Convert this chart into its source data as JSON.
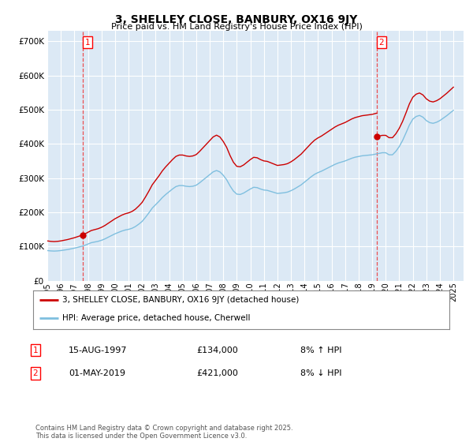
{
  "title": "3, SHELLEY CLOSE, BANBURY, OX16 9JY",
  "subtitle": "Price paid vs. HM Land Registry's House Price Index (HPI)",
  "ylim": [
    0,
    730000
  ],
  "yticks": [
    0,
    100000,
    200000,
    300000,
    400000,
    500000,
    600000,
    700000
  ],
  "ytick_labels": [
    "£0",
    "£100K",
    "£200K",
    "£300K",
    "£400K",
    "£500K",
    "£600K",
    "£700K"
  ],
  "xlim_start": 1995.0,
  "xlim_end": 2025.75,
  "plot_bg_color": "#dce9f5",
  "grid_color": "#ffffff",
  "sale_color": "#cc0000",
  "hpi_color": "#7fbfdf",
  "vline_color": "#ee3333",
  "legend_sale_label": "3, SHELLEY CLOSE, BANBURY, OX16 9JY (detached house)",
  "legend_hpi_label": "HPI: Average price, detached house, Cherwell",
  "annotation1_date": "15-AUG-1997",
  "annotation1_price": "£134,000",
  "annotation1_hpi": "8% ↑ HPI",
  "annotation2_date": "01-MAY-2019",
  "annotation2_price": "£421,000",
  "annotation2_hpi": "8% ↓ HPI",
  "footer": "Contains HM Land Registry data © Crown copyright and database right 2025.\nThis data is licensed under the Open Government Licence v3.0.",
  "hpi_years": [
    1995.0,
    1995.25,
    1995.5,
    1995.75,
    1996.0,
    1996.25,
    1996.5,
    1996.75,
    1997.0,
    1997.25,
    1997.5,
    1997.75,
    1998.0,
    1998.25,
    1998.5,
    1998.75,
    1999.0,
    1999.25,
    1999.5,
    1999.75,
    2000.0,
    2000.25,
    2000.5,
    2000.75,
    2001.0,
    2001.25,
    2001.5,
    2001.75,
    2002.0,
    2002.25,
    2002.5,
    2002.75,
    2003.0,
    2003.25,
    2003.5,
    2003.75,
    2004.0,
    2004.25,
    2004.5,
    2004.75,
    2005.0,
    2005.25,
    2005.5,
    2005.75,
    2006.0,
    2006.25,
    2006.5,
    2006.75,
    2007.0,
    2007.25,
    2007.5,
    2007.75,
    2008.0,
    2008.25,
    2008.5,
    2008.75,
    2009.0,
    2009.25,
    2009.5,
    2009.75,
    2010.0,
    2010.25,
    2010.5,
    2010.75,
    2011.0,
    2011.25,
    2011.5,
    2011.75,
    2012.0,
    2012.25,
    2012.5,
    2012.75,
    2013.0,
    2013.25,
    2013.5,
    2013.75,
    2014.0,
    2014.25,
    2014.5,
    2014.75,
    2015.0,
    2015.25,
    2015.5,
    2015.75,
    2016.0,
    2016.25,
    2016.5,
    2016.75,
    2017.0,
    2017.25,
    2017.5,
    2017.75,
    2018.0,
    2018.25,
    2018.5,
    2018.75,
    2019.0,
    2019.25,
    2019.5,
    2019.75,
    2020.0,
    2020.25,
    2020.5,
    2020.75,
    2021.0,
    2021.25,
    2021.5,
    2021.75,
    2022.0,
    2022.25,
    2022.5,
    2022.75,
    2023.0,
    2023.25,
    2023.5,
    2023.75,
    2024.0,
    2024.25,
    2024.5,
    2024.75,
    2025.0
  ],
  "hpi_values": [
    88000,
    87000,
    86500,
    87000,
    88000,
    89500,
    91000,
    93000,
    95000,
    97500,
    100000,
    103000,
    107000,
    111000,
    113000,
    115000,
    118000,
    122000,
    127000,
    132000,
    137000,
    141000,
    145000,
    148000,
    150000,
    153000,
    158000,
    165000,
    173000,
    185000,
    198000,
    212000,
    222000,
    232000,
    243000,
    252000,
    260000,
    268000,
    275000,
    278000,
    278000,
    276000,
    275000,
    276000,
    279000,
    286000,
    294000,
    302000,
    310000,
    318000,
    322000,
    318000,
    308000,
    295000,
    277000,
    262000,
    253000,
    252000,
    256000,
    262000,
    268000,
    273000,
    272000,
    268000,
    265000,
    264000,
    261000,
    258000,
    255000,
    256000,
    257000,
    259000,
    263000,
    268000,
    274000,
    280000,
    288000,
    296000,
    304000,
    311000,
    316000,
    320000,
    325000,
    330000,
    335000,
    340000,
    344000,
    347000,
    350000,
    354000,
    358000,
    361000,
    363000,
    365000,
    366000,
    367000,
    368000,
    370000,
    372000,
    374000,
    374000,
    368000,
    368000,
    378000,
    392000,
    410000,
    432000,
    455000,
    472000,
    480000,
    483000,
    478000,
    468000,
    462000,
    460000,
    463000,
    468000,
    475000,
    482000,
    490000,
    498000
  ],
  "sale1_year": 1997.62,
  "sale1_price": 134000,
  "sale2_year": 2019.33,
  "sale2_price": 421000
}
